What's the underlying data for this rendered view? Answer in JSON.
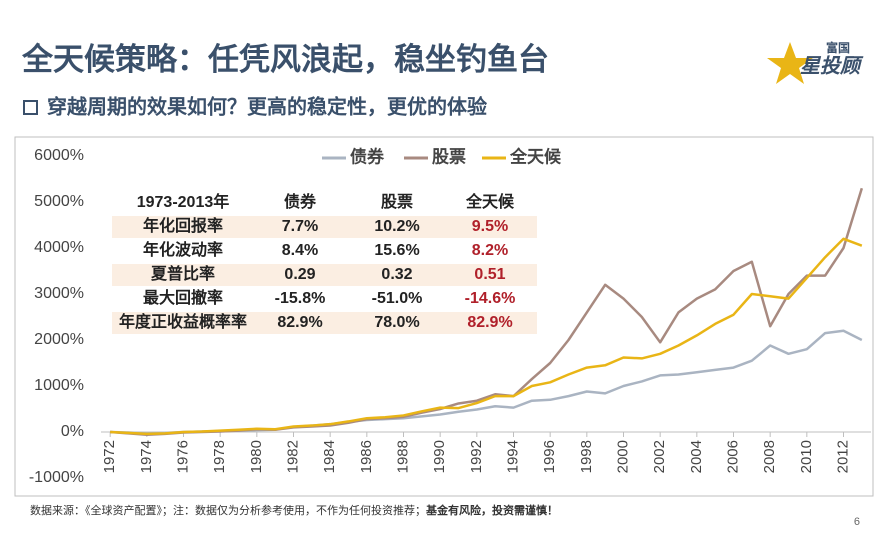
{
  "header": {
    "title": "全天候策略：任凭风浪起，稳坐钓鱼台",
    "subtitle": "穿越周期的效果如何？更高的稳定性，更优的体验",
    "logo_top": "富国",
    "logo_bottom": "星投顾"
  },
  "chart_data": {
    "type": "line",
    "x": [
      1972,
      1973,
      1974,
      1975,
      1976,
      1977,
      1978,
      1979,
      1980,
      1981,
      1982,
      1983,
      1984,
      1985,
      1986,
      1987,
      1988,
      1989,
      1990,
      1991,
      1992,
      1993,
      1994,
      1995,
      1996,
      1997,
      1998,
      1999,
      2000,
      2001,
      2002,
      2003,
      2004,
      2005,
      2006,
      2007,
      2008,
      2009,
      2010,
      2011,
      2012,
      2013
    ],
    "series": [
      {
        "name": "债券",
        "color": "#aab4c2",
        "values": [
          0,
          -10,
          -30,
          -20,
          0,
          10,
          20,
          30,
          40,
          50,
          110,
          140,
          170,
          220,
          260,
          280,
          300,
          340,
          380,
          440,
          490,
          560,
          530,
          680,
          700,
          780,
          880,
          840,
          1000,
          1100,
          1230,
          1250,
          1300,
          1350,
          1400,
          1550,
          1880,
          1700,
          1800,
          2150,
          2200,
          2000
        ]
      },
      {
        "name": "股票",
        "color": "#a88a80",
        "values": [
          0,
          -30,
          -60,
          -40,
          -10,
          0,
          10,
          30,
          60,
          50,
          100,
          120,
          140,
          200,
          280,
          300,
          330,
          420,
          500,
          620,
          680,
          820,
          780,
          1150,
          1500,
          2000,
          2600,
          3200,
          2900,
          2500,
          1950,
          2600,
          2900,
          3100,
          3500,
          3700,
          2300,
          3000,
          3400,
          3400,
          4000,
          5300
        ]
      },
      {
        "name": "全天候",
        "color": "#e9b516",
        "values": [
          0,
          -20,
          -40,
          -30,
          0,
          10,
          30,
          50,
          70,
          60,
          120,
          140,
          170,
          230,
          300,
          320,
          360,
          450,
          530,
          520,
          630,
          780,
          780,
          1000,
          1080,
          1250,
          1400,
          1450,
          1620,
          1600,
          1700,
          1880,
          2100,
          2350,
          2550,
          3000,
          2950,
          2900,
          3350,
          3800,
          4200,
          4050
        ]
      }
    ],
    "xlim": [
      1971.5,
      2013.5
    ],
    "xticks": [
      1972,
      1974,
      1976,
      1978,
      1980,
      1982,
      1984,
      1986,
      1988,
      1990,
      1992,
      1994,
      1996,
      1998,
      2000,
      2002,
      2004,
      2006,
      2008,
      2010,
      2012
    ],
    "ylim": [
      -1000,
      6000
    ],
    "yticks": [
      {
        "value": -1000,
        "label": "-1000%"
      },
      {
        "value": 0,
        "label": "0%"
      },
      {
        "value": 1000,
        "label": "1000%"
      },
      {
        "value": 2000,
        "label": "2000%"
      },
      {
        "value": 3000,
        "label": "3000%"
      },
      {
        "value": 4000,
        "label": "4000%"
      },
      {
        "value": 5000,
        "label": "5000%"
      },
      {
        "value": 6000,
        "label": "6000%"
      }
    ],
    "grid": false
  },
  "table": {
    "columns": [
      "1973-2013年",
      "债券",
      "股票",
      "全天候"
    ],
    "rows": [
      [
        "年化回报率",
        "7.7%",
        "10.2%",
        "9.5%"
      ],
      [
        "年化波动率",
        "8.4%",
        "15.6%",
        "8.2%"
      ],
      [
        "夏普比率",
        "0.29",
        "0.32",
        "0.51"
      ],
      [
        "最大回撤率",
        "-15.8%",
        "-51.0%",
        "-14.6%"
      ],
      [
        "年度正收益概率率",
        "82.9%",
        "78.0%",
        "82.9%"
      ]
    ]
  },
  "footer": {
    "source": "数据来源：《全球资产配置》；注：数据仅为分析参考使用，不作为任何投资推荐；",
    "warning": "基金有风险，投资需谨慎！",
    "page": "6"
  }
}
